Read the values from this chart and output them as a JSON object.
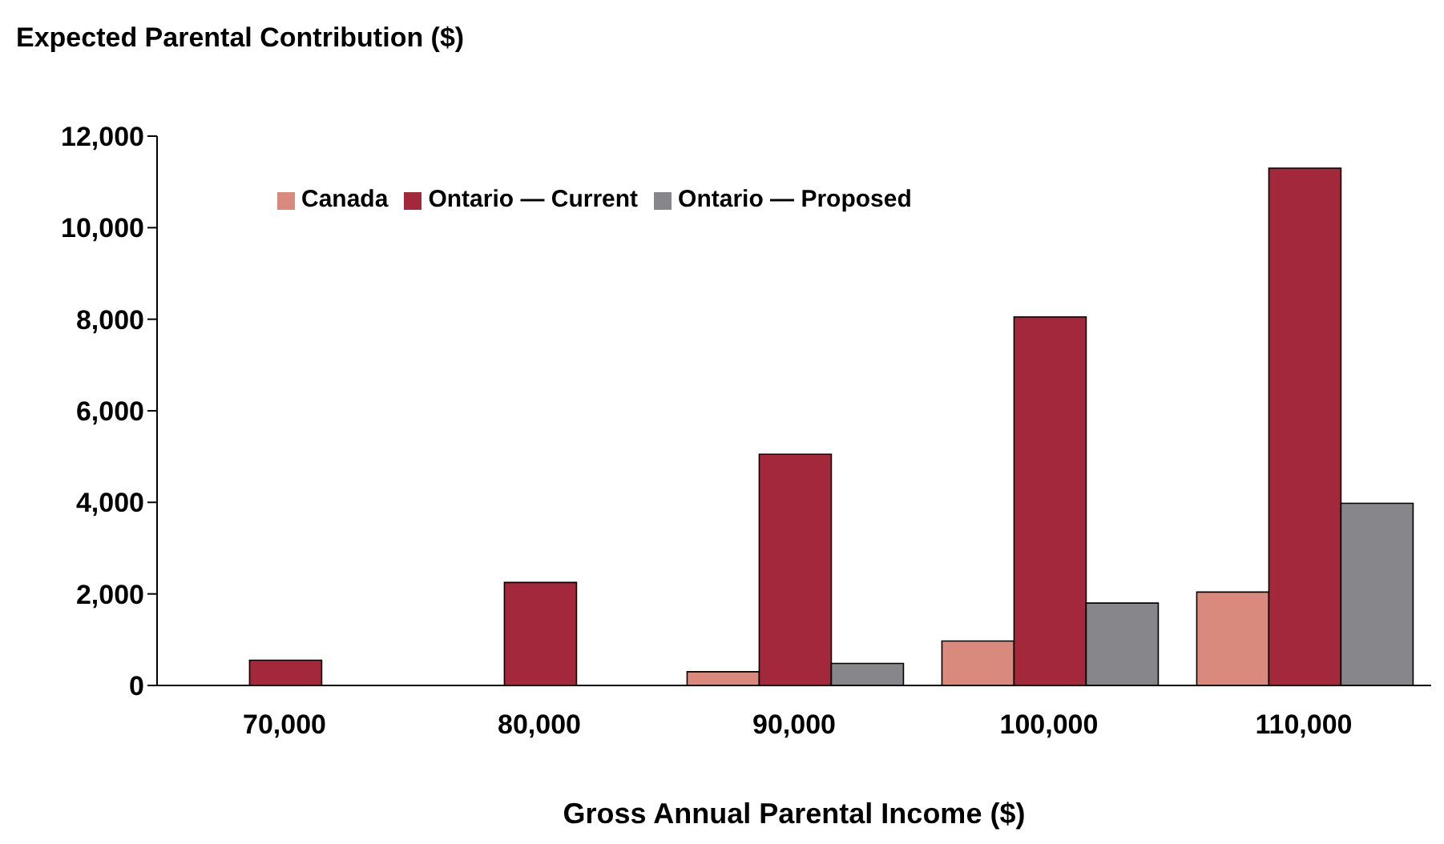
{
  "chart_data": {
    "type": "bar",
    "ylabel": "Expected Parental Contribution ($)",
    "xlabel": "Gross Annual Parental Income ($)",
    "categories": [
      "70,000",
      "80,000",
      "90,000",
      "100,000",
      "110,000"
    ],
    "series": [
      {
        "name": "Canada",
        "color": "#d98a7c",
        "values": [
          0,
          0,
          300,
          970,
          2040
        ]
      },
      {
        "name": "Ontario — Current",
        "color": "#a3283b",
        "values": [
          550,
          2250,
          5050,
          8050,
          11300
        ]
      },
      {
        "name": "Ontario — Proposed",
        "color": "#87878b",
        "values": [
          0,
          0,
          480,
          1800,
          3980
        ]
      }
    ],
    "ylim": [
      0,
      12000
    ],
    "yticks": [
      {
        "value": 0,
        "label": "0"
      },
      {
        "value": 2000,
        "label": "2,000"
      },
      {
        "value": 4000,
        "label": "4,000"
      },
      {
        "value": 6000,
        "label": "6,000"
      },
      {
        "value": 8000,
        "label": "8,000"
      },
      {
        "value": 10000,
        "label": "10,000"
      },
      {
        "value": 12000,
        "label": "12,000"
      }
    ],
    "grid": false,
    "legend": "top left"
  }
}
